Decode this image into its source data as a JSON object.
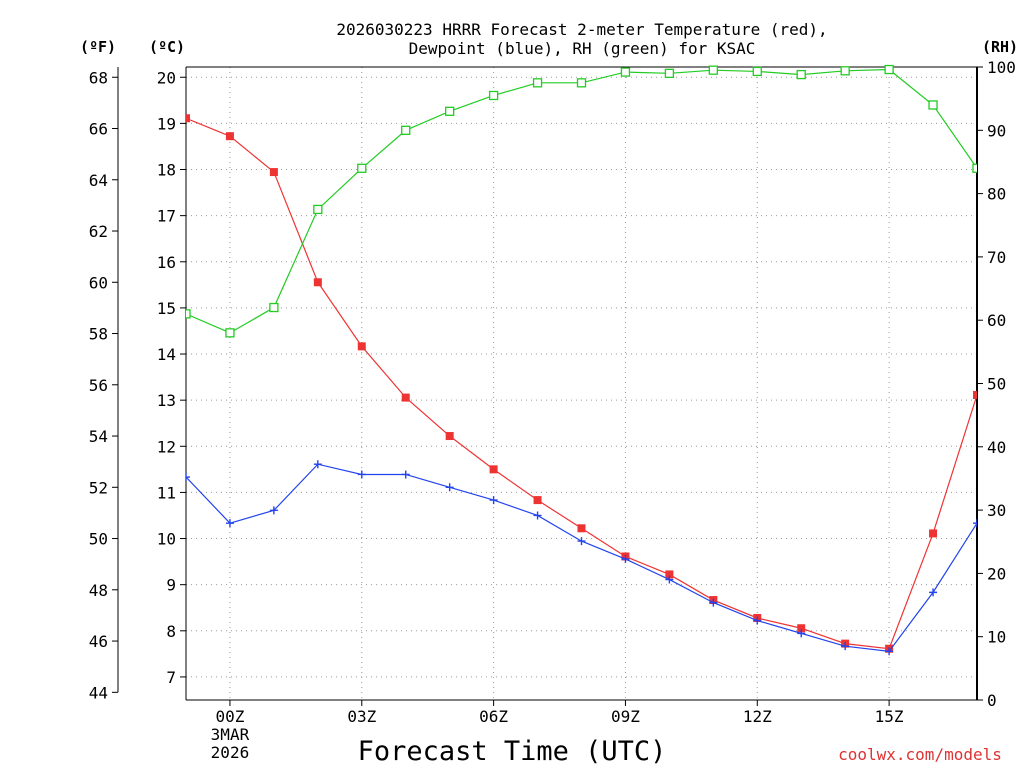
{
  "chart_data": {
    "type": "line",
    "title_line1": "2026030223 HRRR Forecast 2-meter Temperature (red),",
    "title_line2": "Dewpoint (blue), RH (green) for KSAC",
    "axis_left_f_label": "(ºF)",
    "axis_left_c_label": "(ºC)",
    "axis_right_label": "(RH)",
    "xlabel": "Forecast Time (UTC)",
    "watermark": "coolwx.com/models",
    "x_range": [
      -1,
      17
    ],
    "x_ticks": [
      {
        "x": 0,
        "label": "00Z",
        "sub1": "3MAR",
        "sub2": "2026"
      },
      {
        "x": 3,
        "label": "03Z"
      },
      {
        "x": 6,
        "label": "06Z"
      },
      {
        "x": 9,
        "label": "09Z"
      },
      {
        "x": 12,
        "label": "12Z"
      },
      {
        "x": 15,
        "label": "15Z"
      }
    ],
    "f_range": [
      43.7,
      68.4
    ],
    "f_ticks": [
      "44",
      "46",
      "48",
      "50",
      "52",
      "54",
      "56",
      "58",
      "60",
      "62",
      "64",
      "66",
      "68"
    ],
    "c_ticks": [
      "7",
      "8",
      "9",
      "10",
      "11",
      "12",
      "13",
      "14",
      "15",
      "16",
      "17",
      "18",
      "19",
      "20"
    ],
    "rh_range": [
      0,
      100
    ],
    "rh_ticks": [
      "0",
      "10",
      "20",
      "30",
      "40",
      "50",
      "60",
      "70",
      "80",
      "90",
      "100"
    ],
    "x": [
      -1,
      0,
      1,
      2,
      3,
      4,
      5,
      6,
      7,
      8,
      9,
      10,
      11,
      12,
      13,
      14,
      15,
      16,
      17
    ],
    "series": [
      {
        "name": "Temperature",
        "units": "F",
        "color": "#ee3333",
        "marker": "filled-square",
        "values": [
          66.4,
          65.7,
          64.3,
          60.0,
          57.5,
          55.5,
          54.0,
          52.7,
          51.5,
          50.4,
          49.3,
          48.6,
          47.6,
          46.9,
          46.5,
          45.9,
          45.7,
          50.2,
          55.6
        ]
      },
      {
        "name": "Dewpoint",
        "units": "F",
        "color": "#2244ee",
        "marker": "plus",
        "values": [
          52.4,
          50.6,
          51.1,
          52.9,
          52.5,
          52.5,
          52.0,
          51.5,
          50.9,
          49.9,
          49.2,
          48.4,
          47.5,
          46.8,
          46.3,
          45.8,
          45.6,
          47.9,
          50.6
        ]
      },
      {
        "name": "RH",
        "units": "%",
        "color": "#22cc22",
        "marker": "open-square",
        "values": [
          61,
          58,
          62,
          77.5,
          84,
          90,
          93,
          95.5,
          97.5,
          97.5,
          99.2,
          99,
          99.5,
          99.3,
          98.8,
          99.4,
          99.6,
          94,
          84
        ]
      }
    ]
  }
}
